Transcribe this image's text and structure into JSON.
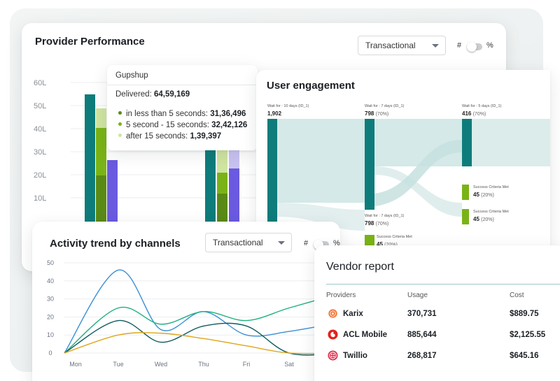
{
  "provider_performance": {
    "title": "Provider Performance",
    "select_value": "Transactional",
    "toggle_left": "#",
    "toggle_right": "%",
    "y_ticks": [
      "60L",
      "50L",
      "40L",
      "30L",
      "20L",
      "10L"
    ],
    "colors": {
      "dark": "#0e7c7b",
      "green": "#7ab317",
      "olive": "#5a8a16",
      "light_green": "#cfe5a0",
      "purple": "#6a5ae0",
      "lavender": "#c9c3f2"
    }
  },
  "tooltip": {
    "provider": "Gupshup",
    "delivered_label": "Delivered:",
    "delivered_value": "64,59,169",
    "rows": [
      {
        "label": "in less than 5 seconds:",
        "value": "31,36,496",
        "color": "#5a8a16"
      },
      {
        "label": "5 second - 15 seconds:",
        "value": "32,42,126",
        "color": "#7ab317"
      },
      {
        "label": "after 15 seconds:",
        "value": "1,39,397",
        "color": "#cfe5a0"
      }
    ]
  },
  "user_engagement": {
    "title": "User engagement",
    "nodes": [
      {
        "caption": "Wait for : 10 days (ID_1)",
        "value": "1,902",
        "pct": ""
      },
      {
        "caption": "Wait for : 7 days (ID_1)",
        "value": "798",
        "pct": "(70%)"
      },
      {
        "caption": "Wait for : 5 days (ID_1)",
        "value": "416",
        "pct": "(70%)"
      },
      {
        "caption": "Success Criteria Met",
        "value": "45",
        "pct": "(20%)"
      },
      {
        "caption": "Success Criteria Met",
        "value": "45",
        "pct": "(20%)"
      },
      {
        "caption": "Wait for : 7 days (ID_1)",
        "value": "798",
        "pct": "(70%)"
      },
      {
        "caption": "Success Criteria Met",
        "value": "45",
        "pct": "(20%)"
      },
      {
        "caption": "Success Criteria Met",
        "value": "45",
        "pct": "(20%)"
      }
    ]
  },
  "activity_trend": {
    "title": "Activity trend by channels",
    "select_value": "Transactional",
    "toggle_left": "#",
    "toggle_right": "%"
  },
  "chart_data": {
    "type": "line",
    "x": [
      "Mon",
      "Tue",
      "Wed",
      "Thu",
      "Fri",
      "Sat"
    ],
    "ylim": [
      0,
      50
    ],
    "y_ticks": [
      0,
      10,
      20,
      30,
      40,
      50
    ],
    "series": [
      {
        "color": "#3a8fd6",
        "values": [
          0,
          46,
          13,
          23,
          10,
          12
        ]
      },
      {
        "color": "#1fb07f",
        "values": [
          0,
          25,
          16,
          23,
          18,
          25
        ]
      },
      {
        "color": "#0f5a5e",
        "values": [
          0,
          18,
          6,
          15,
          15,
          0
        ]
      },
      {
        "color": "#e0a51a",
        "values": [
          0,
          10,
          11,
          8,
          4,
          0
        ]
      }
    ]
  },
  "vendor_report": {
    "title": "Vendor report",
    "columns": [
      "Providers",
      "Usage",
      "Cost"
    ],
    "rows": [
      {
        "provider": "Karix",
        "usage": "370,731",
        "cost": "$889.75",
        "logo_color": "#f06a2a",
        "icon": "karix-logo-icon"
      },
      {
        "provider": "ACL Mobile",
        "usage": "885,644",
        "cost": "$2,125.55",
        "logo_color": "#e2231a",
        "icon": "acl-mobile-logo-icon"
      },
      {
        "provider": "Twillio",
        "usage": "268,817",
        "cost": "$645.16",
        "logo_color": "#e0334e",
        "icon": "twilio-logo-icon"
      }
    ]
  }
}
